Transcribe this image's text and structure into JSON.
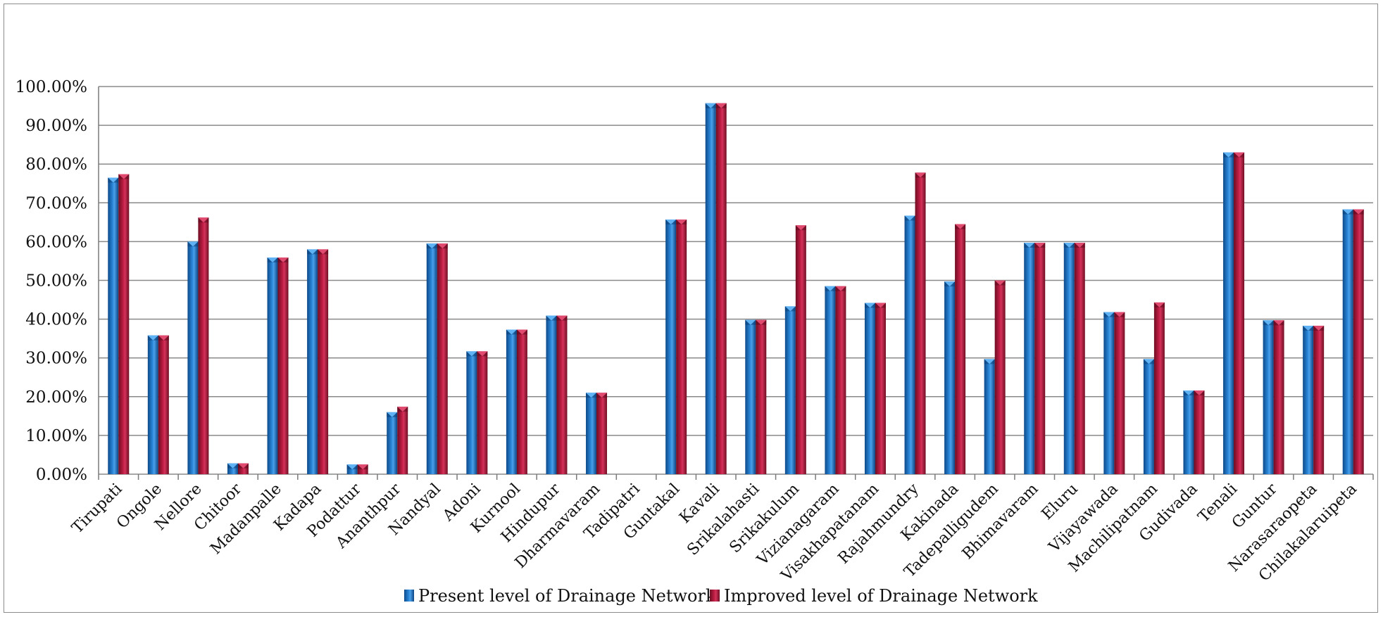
{
  "chart_data": {
    "type": "bar",
    "title": "",
    "xlabel": "",
    "ylabel": "",
    "ylim": [
      0,
      1
    ],
    "y_tick_labels": [
      "0.00%",
      "10.00%",
      "20.00%",
      "30.00%",
      "40.00%",
      "50.00%",
      "60.00%",
      "70.00%",
      "80.00%",
      "90.00%",
      "100.00%"
    ],
    "y_ticks": [
      0,
      0.1,
      0.2,
      0.3,
      0.4,
      0.5,
      0.6,
      0.7,
      0.8,
      0.9,
      1.0
    ],
    "grid": true,
    "legend_position": "bottom",
    "categories": [
      "Tirupati",
      "Ongole",
      "Nellore",
      "Chitoor",
      "Madanpalle",
      "Kadapa",
      "Podattur",
      "Ananthpur",
      "Nandyal",
      "Adoni",
      "Kurnool",
      "Hindupur",
      "Dharmavaram",
      "Tadipatri",
      "Guntakal",
      "Kavali",
      "Srikalahasti",
      "Srikakulum",
      "Vizianagaram",
      "Visakhapatanam",
      "Rajahmundry",
      "Kakinada",
      "Tadepalligudem",
      "Bhimavaram",
      "Eluru",
      "Vijayawada",
      "Machilipatnam",
      "Gudivada",
      "Tenali",
      "Guntur",
      "Narasaraopeta",
      "Chilakalaruipeta"
    ],
    "series": [
      {
        "name": "Present level of Drainage Network",
        "color": "#1f6fc0",
        "values": [
          0.765,
          0.358,
          0.6,
          0.028,
          0.559,
          0.58,
          0.025,
          0.16,
          0.595,
          0.317,
          0.373,
          0.409,
          0.21,
          0.0,
          0.657,
          0.957,
          0.398,
          0.433,
          0.485,
          0.442,
          0.667,
          0.497,
          0.297,
          0.597,
          0.597,
          0.418,
          0.297,
          0.216,
          0.83,
          0.397,
          0.383,
          0.683
        ]
      },
      {
        "name": "Improved level of Drainage Network",
        "color": "#b0173a",
        "values": [
          0.774,
          0.358,
          0.662,
          0.028,
          0.559,
          0.58,
          0.025,
          0.174,
          0.595,
          0.317,
          0.373,
          0.409,
          0.21,
          0.0,
          0.657,
          0.957,
          0.398,
          0.642,
          0.485,
          0.442,
          0.778,
          0.645,
          0.5,
          0.597,
          0.597,
          0.418,
          0.443,
          0.216,
          0.83,
          0.397,
          0.383,
          0.683
        ]
      }
    ]
  }
}
